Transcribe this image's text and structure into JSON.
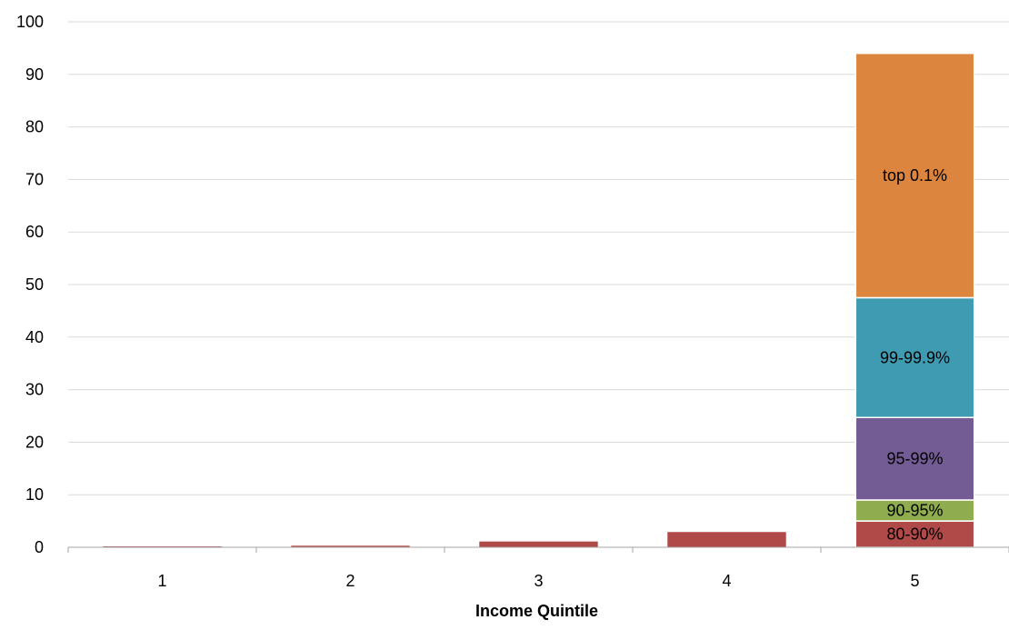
{
  "chart_data": {
    "type": "bar",
    "stacked": true,
    "title": "",
    "xlabel": "Income Quintile",
    "ylabel": "",
    "ylim": [
      0,
      100
    ],
    "yticks": [
      0,
      10,
      20,
      30,
      40,
      50,
      60,
      70,
      80,
      90,
      100
    ],
    "grid": true,
    "legend": "none",
    "categories": [
      "1",
      "2",
      "3",
      "4",
      "5"
    ],
    "series": [
      {
        "label": "80-90%",
        "color": "#b04a48",
        "values": [
          0.05,
          0.3,
          1.1,
          2.9,
          5.0
        ]
      },
      {
        "label": "90-95%",
        "color": "#8fad4e",
        "values": [
          0,
          0,
          0,
          0,
          4.0
        ]
      },
      {
        "label": "95-99%",
        "color": "#735b93",
        "values": [
          0,
          0,
          0,
          0,
          15.7
        ]
      },
      {
        "label": "99-99.9%",
        "color": "#3f9bb2",
        "values": [
          0,
          0,
          0,
          0,
          22.8
        ]
      },
      {
        "label": "top 0.1%",
        "color": "#dc853e",
        "values": [
          0,
          0,
          0,
          0,
          46.5
        ]
      }
    ],
    "segment_labels_on_category": "5"
  }
}
